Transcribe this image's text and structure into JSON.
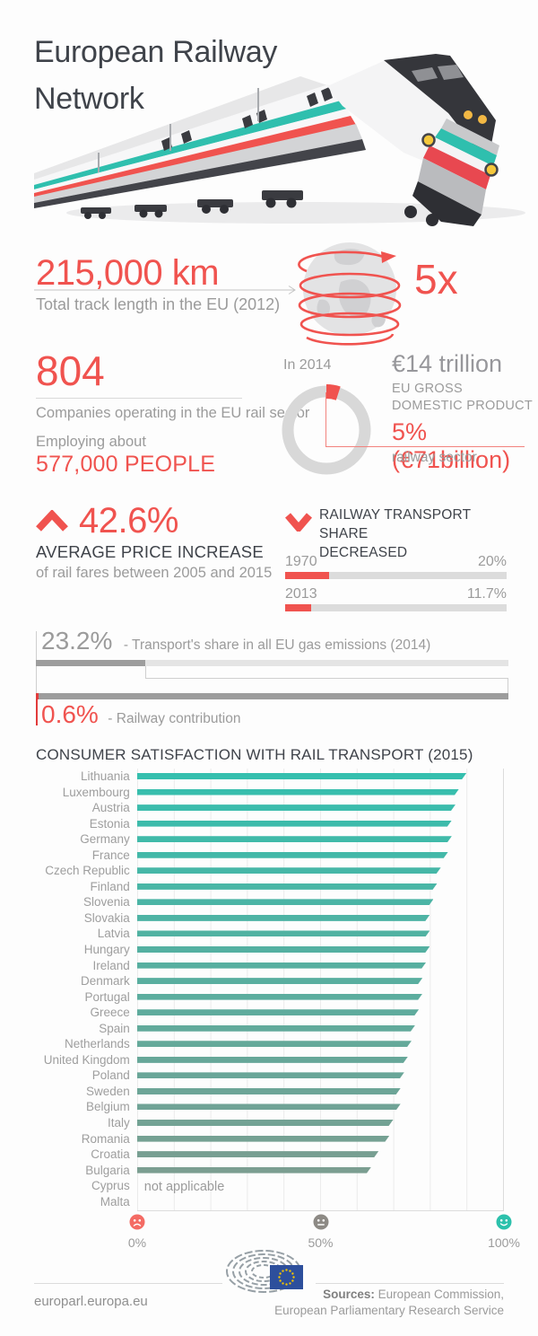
{
  "header": {
    "title_line1": "European Railway",
    "title_line2": "Network"
  },
  "track": {
    "value": "215,000 km",
    "caption": "Total track length in the EU (2012)",
    "multiplier": "5x"
  },
  "companies": {
    "value": "804",
    "caption": "Companies operating in the EU rail sector",
    "employing": "Employing about",
    "people": "577,000 PEOPLE"
  },
  "fares": {
    "value": "42.6%",
    "label": "AVERAGE PRICE INCREASE",
    "caption": "of rail fares between 2005 and 2015"
  },
  "colors": {
    "accent_red": "#f0534f",
    "accent_teal": "#2fbfae",
    "dark_text": "#3f434a",
    "gray_text": "#9b9b9b",
    "donut_gray": "#d8d8d8",
    "sad_face": "#f46b64",
    "neutral_face": "#8d8a85",
    "happy_face": "#2cc1ac",
    "eu_flag_blue": "#2d4f9c"
  },
  "chart_data": [
    {
      "id": "consumer_satisfaction",
      "type": "bar",
      "orientation": "horizontal",
      "title": "CONSUMER SATISFACTION WITH RAIL TRANSPORT (2015)",
      "xlim": [
        0,
        100
      ],
      "x_tick_labels": [
        "0%",
        "50%",
        "100%"
      ],
      "grid": true,
      "not_applicable_note": "not applicable",
      "bar_color_start": "#35bfae",
      "bar_color_end": "#7b9e91",
      "categories": [
        "Lithuania",
        "Luxembourg",
        "Austria",
        "Estonia",
        "Germany",
        "France",
        "Czech Republic",
        "Finland",
        "Slovenia",
        "Slovakia",
        "Latvia",
        "Hungary",
        "Ireland",
        "Denmark",
        "Portugal",
        "Greece",
        "Spain",
        "Netherlands",
        "United Kingdom",
        "Poland",
        "Sweden",
        "Belgium",
        "Italy",
        "Romania",
        "Croatia",
        "Bulgaria",
        "Cyprus",
        "Malta"
      ],
      "values": [
        90,
        88,
        87,
        86,
        86,
        85,
        83,
        82,
        81,
        80,
        80,
        80,
        79,
        78,
        78,
        77,
        76,
        75,
        74,
        73,
        72,
        72,
        70,
        69,
        66,
        64,
        null,
        null
      ]
    },
    {
      "id": "modal_share",
      "type": "bar",
      "title_line1": "RAILWAY TRANSPORT SHARE",
      "title_line2": "DECREASED",
      "xlim": [
        0,
        100
      ],
      "categories": [
        "1970",
        "2013"
      ],
      "values": [
        20,
        11.7
      ],
      "value_labels": [
        "20%",
        "11.7%"
      ]
    },
    {
      "id": "gas_emissions",
      "type": "bar",
      "xlim": [
        0,
        100
      ],
      "rows": [
        {
          "label": "23.2%",
          "caption": "- Transport's share in all EU gas emissions (2014)",
          "value": 23.2
        },
        {
          "label": "0.6%",
          "caption": "- Railway contribution",
          "value": 0.6
        }
      ]
    },
    {
      "id": "gdp_donut",
      "type": "pie",
      "period_label": "In 2014",
      "total_label": "€14 trillion",
      "total_caption_line1": "EU GROSS",
      "total_caption_line2": "DOMESTIC PRODUCT",
      "highlight_label": "5% (€71billion)",
      "highlight_caption": "railway sector",
      "slices": [
        {
          "label": "railway sector",
          "value": 5
        },
        {
          "label": "rest of EU gross domestic product",
          "value": 95
        }
      ]
    }
  ],
  "footer": {
    "site": "europarl.europa.eu",
    "sources_label": "Sources:",
    "sources_line1": " European Commission,",
    "sources_line2": "European Parliamentary Research Service"
  }
}
